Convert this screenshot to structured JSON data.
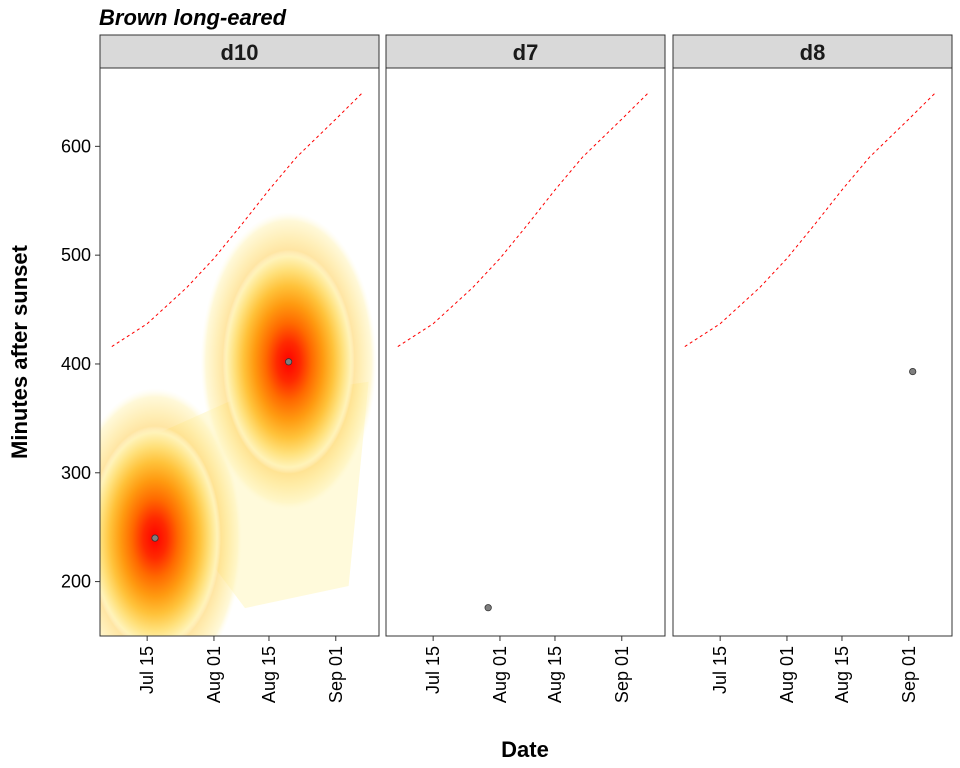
{
  "chart_data": {
    "type": "faceted-density-scatter",
    "title": "Brown long-eared",
    "xlabel": "Date",
    "ylabel": "Minutes after sunset",
    "x_ticks": [
      "Jul 15",
      "Aug 01",
      "Aug 15",
      "Sep 01"
    ],
    "x_tick_dates": [
      "2021-07-15",
      "2021-08-01",
      "2021-08-15",
      "2021-09-01"
    ],
    "xlim": [
      "2021-07-03",
      "2021-09-12"
    ],
    "y_ticks": [
      200,
      300,
      400,
      500,
      600
    ],
    "ylim": [
      150,
      672
    ],
    "grid": false,
    "colors": {
      "strip_fill": "#d9d9d9",
      "sunrise_line": "#ff0000",
      "point_fill": "#7f7f7f",
      "density_low": "#fff6c4",
      "density_high": "#ff0000"
    },
    "sunrise_line": {
      "dates": [
        "2021-07-06",
        "2021-07-15",
        "2021-07-25",
        "2021-08-01",
        "2021-08-08",
        "2021-08-15",
        "2021-08-22",
        "2021-09-01",
        "2021-09-08"
      ],
      "values": [
        416,
        437,
        470,
        497,
        528,
        560,
        590,
        625,
        650
      ]
    },
    "facets": [
      {
        "label": "d10",
        "points": [
          {
            "date": "2021-07-17",
            "minutes": 240
          },
          {
            "date": "2021-08-20",
            "minutes": 402
          }
        ],
        "density_peaks": [
          {
            "date": "2021-07-17",
            "minutes": 240
          },
          {
            "date": "2021-08-20",
            "minutes": 402
          }
        ]
      },
      {
        "label": "d7",
        "points": [
          {
            "date": "2021-07-29",
            "minutes": 176
          }
        ],
        "density_peaks": []
      },
      {
        "label": "d8",
        "points": [
          {
            "date": "2021-09-02",
            "minutes": 393
          }
        ],
        "density_peaks": []
      }
    ]
  }
}
